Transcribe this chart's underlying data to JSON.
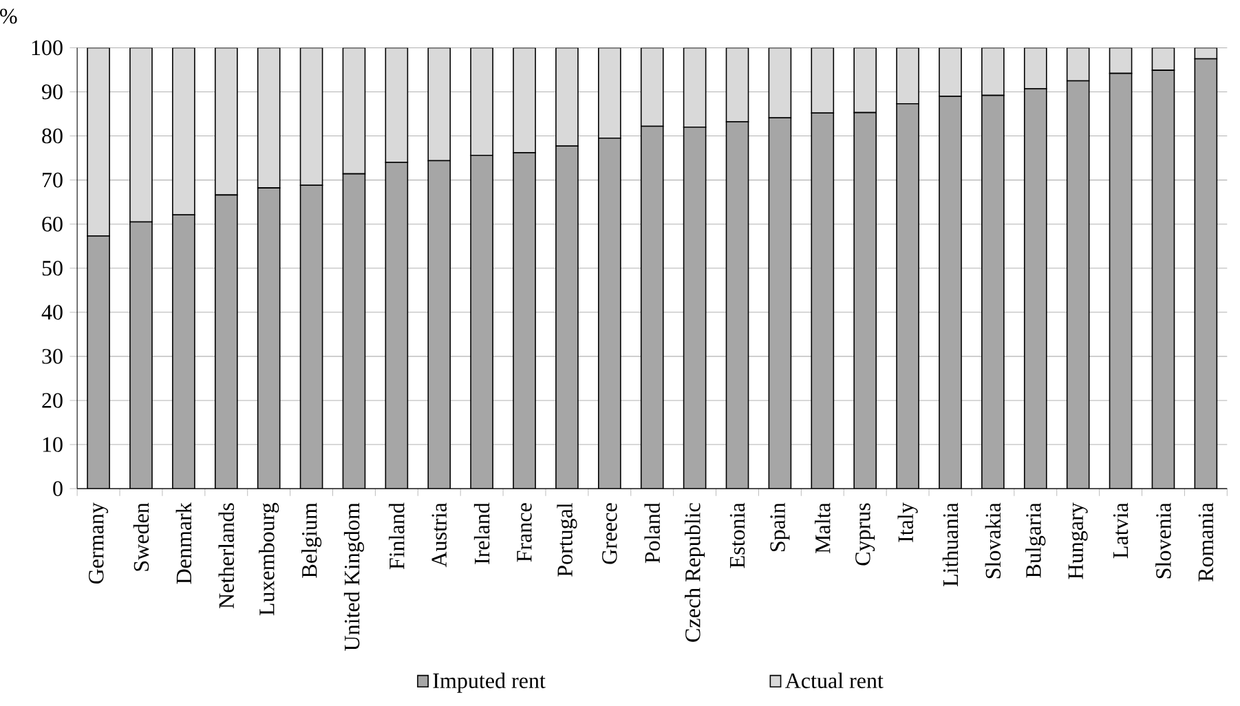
{
  "chart_data": {
    "type": "bar",
    "stacked": true,
    "ylabel": "%",
    "categories": [
      "Germany",
      "Sweden",
      "Denmark",
      "Netherlands",
      "Luxembourg",
      "Belgium",
      "United Kingdom",
      "Finland",
      "Austria",
      "Ireland",
      "France",
      "Portugal",
      "Greece",
      "Poland",
      "Czech Republic",
      "Estonia",
      "Spain",
      "Malta",
      "Cyprus",
      "Italy",
      "Lithuania",
      "Slovakia",
      "Bulgaria",
      "Hungary",
      "Latvia",
      "Slovenia",
      "Romania"
    ],
    "series": [
      {
        "name": "Imputed rent",
        "color": "#a6a6a6",
        "values": [
          57.3,
          60.5,
          62.1,
          66.6,
          68.2,
          68.8,
          71.4,
          74.0,
          74.4,
          75.6,
          76.2,
          77.7,
          79.5,
          82.2,
          82.0,
          83.2,
          84.1,
          85.2,
          85.3,
          87.3,
          89.0,
          89.2,
          90.7,
          92.5,
          94.2,
          94.9,
          97.5
        ]
      },
      {
        "name": "Actual rent",
        "color": "#d9d9d9",
        "values": [
          42.7,
          39.5,
          37.9,
          33.4,
          31.8,
          31.2,
          28.6,
          26.0,
          25.6,
          24.4,
          23.8,
          22.3,
          20.5,
          17.8,
          18.0,
          16.8,
          15.9,
          14.8,
          14.7,
          12.7,
          11.0,
          10.8,
          9.3,
          7.5,
          5.8,
          5.1,
          2.5
        ]
      }
    ],
    "ylim": [
      0,
      100
    ],
    "yticks": [
      0,
      10,
      20,
      30,
      40,
      50,
      60,
      70,
      80,
      90,
      100
    ],
    "grid": "y",
    "legend": "bottom"
  }
}
